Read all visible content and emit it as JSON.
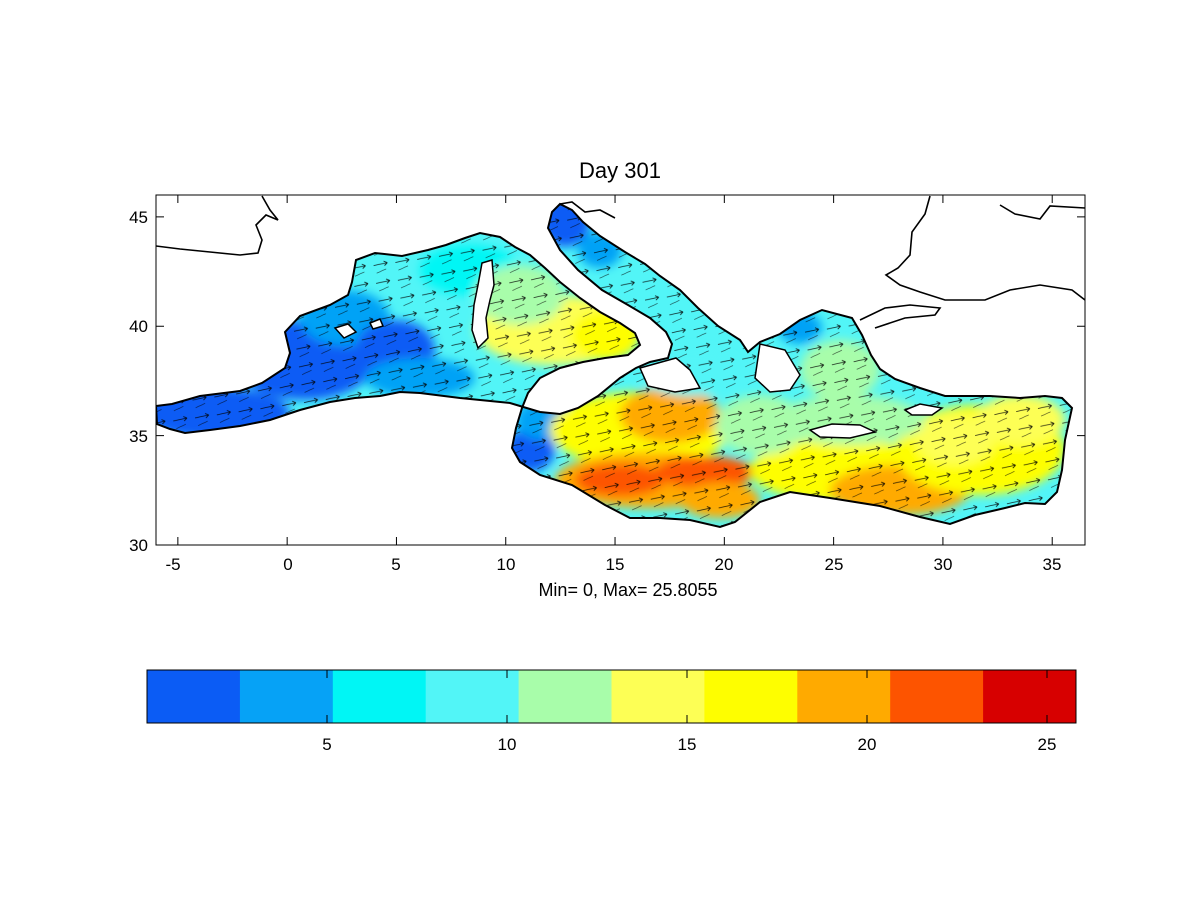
{
  "map": {
    "title": "Day 301",
    "stats_label": "Min= 0,  Max= 25.8055",
    "x_range": [
      -6,
      36.5
    ],
    "y_range": [
      30,
      46
    ],
    "x_ticks": [
      -5,
      0,
      5,
      10,
      15,
      20,
      25,
      30,
      35
    ],
    "y_ticks": [
      30,
      35,
      40,
      45
    ],
    "x_tick_labels": [
      "-5",
      "0",
      "5",
      "10",
      "15",
      "20",
      "25",
      "30",
      "35"
    ],
    "y_tick_labels": [
      "30",
      "35",
      "40",
      "45"
    ],
    "arrows": "current vectors (black)",
    "land_color": "#ffffff",
    "coastline_color": "#000000"
  },
  "colorbar": {
    "range": [
      0,
      25.8055
    ],
    "tick_values": [
      5,
      10,
      15,
      20,
      25
    ],
    "tick_labels": [
      "5",
      "10",
      "15",
      "20",
      "25"
    ],
    "colors": [
      "#0b5cf5",
      "#06a2f6",
      "#00f6f5",
      "#52f5f7",
      "#a8fdaa",
      "#fdff55",
      "#fefe00",
      "#ffaa00",
      "#fd5400",
      "#d70000"
    ]
  }
}
